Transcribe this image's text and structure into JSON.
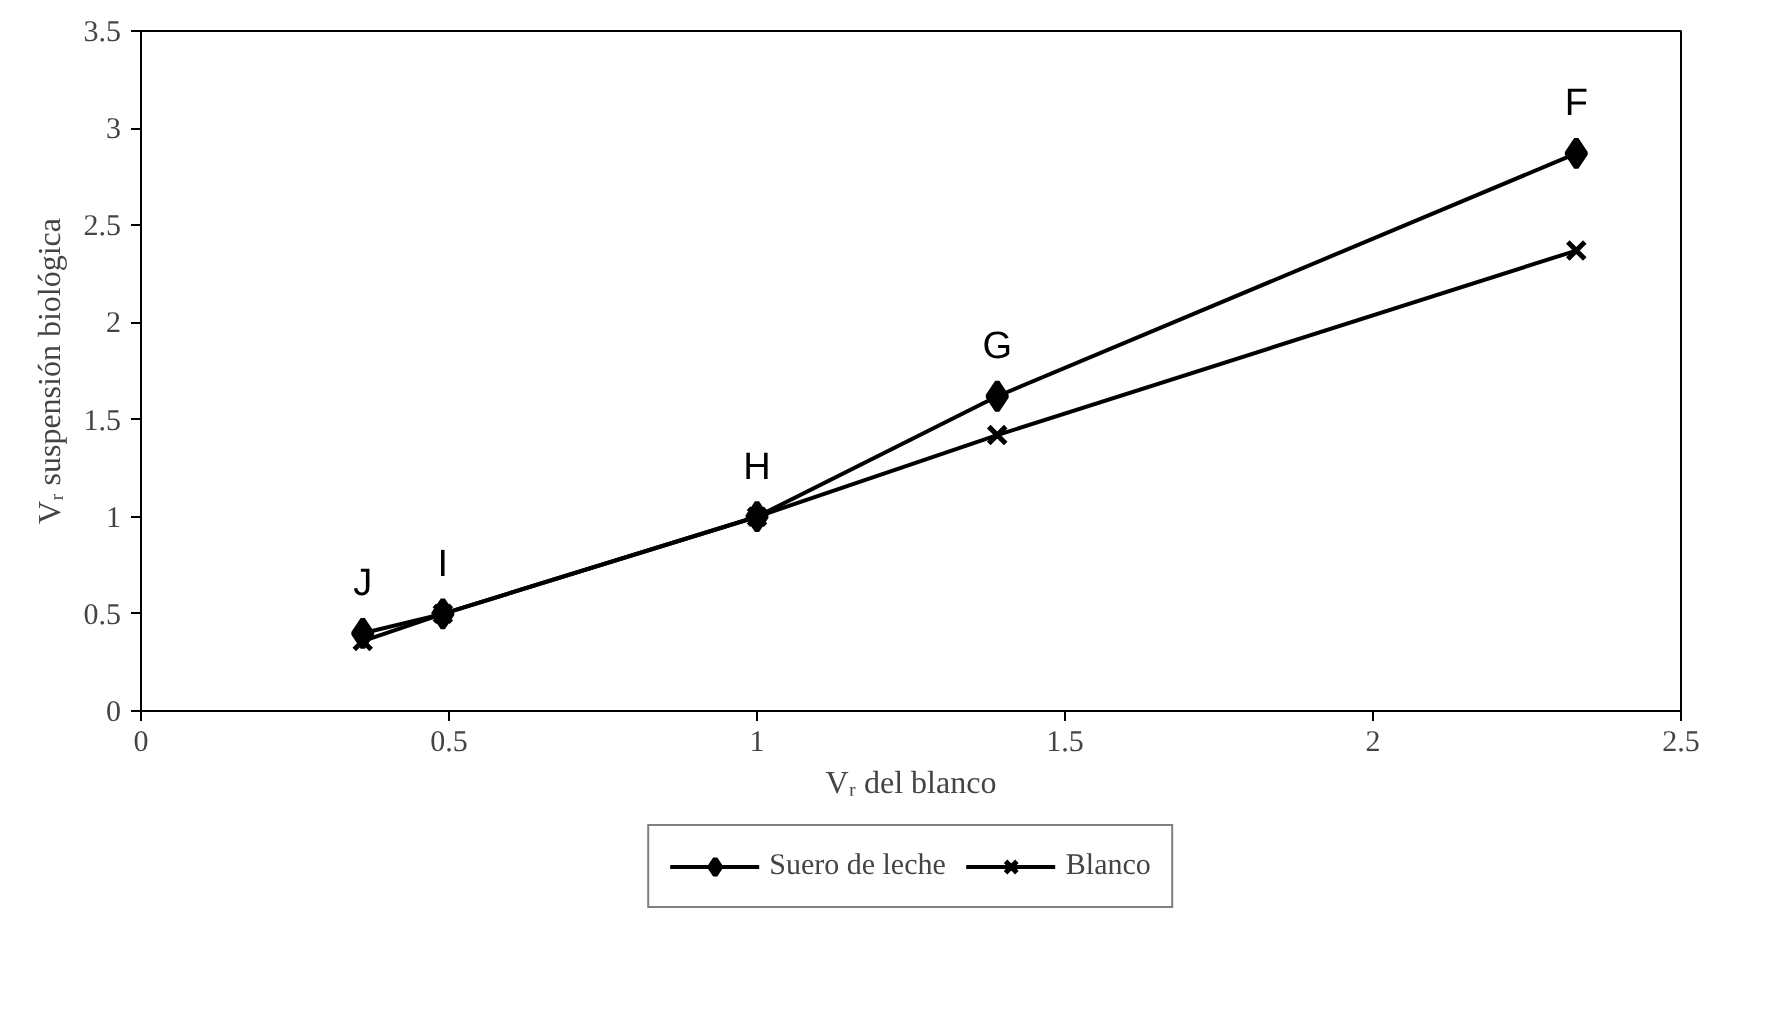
{
  "chart_data": {
    "type": "line",
    "xlabel": "Vᵣ del blanco",
    "ylabel": "Vᵣ suspensión biológica",
    "x": [
      0.36,
      0.49,
      1,
      1.39,
      2.33
    ],
    "series": [
      {
        "name": "Suero de leche",
        "color": "#000000",
        "marker": "diamond",
        "values": [
          0.4,
          0.5,
          1,
          1.62,
          2.87
        ]
      },
      {
        "name": "Blanco",
        "color": "#000000",
        "marker": "cross",
        "values": [
          0.36,
          0.5,
          1,
          1.42,
          2.37
        ]
      }
    ],
    "xlim": [
      0,
      2.5
    ],
    "ylim": [
      0,
      3.5
    ],
    "xticks": [
      0,
      0.5,
      1,
      1.5,
      2,
      2.5
    ],
    "yticks": [
      0,
      0.5,
      1,
      1.5,
      2,
      2.5,
      3,
      3.5
    ],
    "grid": false,
    "legend": "bottom",
    "line_style": "solid",
    "annotations": [
      {
        "text": "J",
        "x": 0.36,
        "y": 0.4
      },
      {
        "text": "I",
        "x": 0.49,
        "y": 0.5
      },
      {
        "text": "H",
        "x": 1,
        "y": 1
      },
      {
        "text": "G",
        "x": 1.39,
        "y": 1.62
      },
      {
        "text": "F",
        "x": 2.33,
        "y": 2.87
      }
    ]
  }
}
